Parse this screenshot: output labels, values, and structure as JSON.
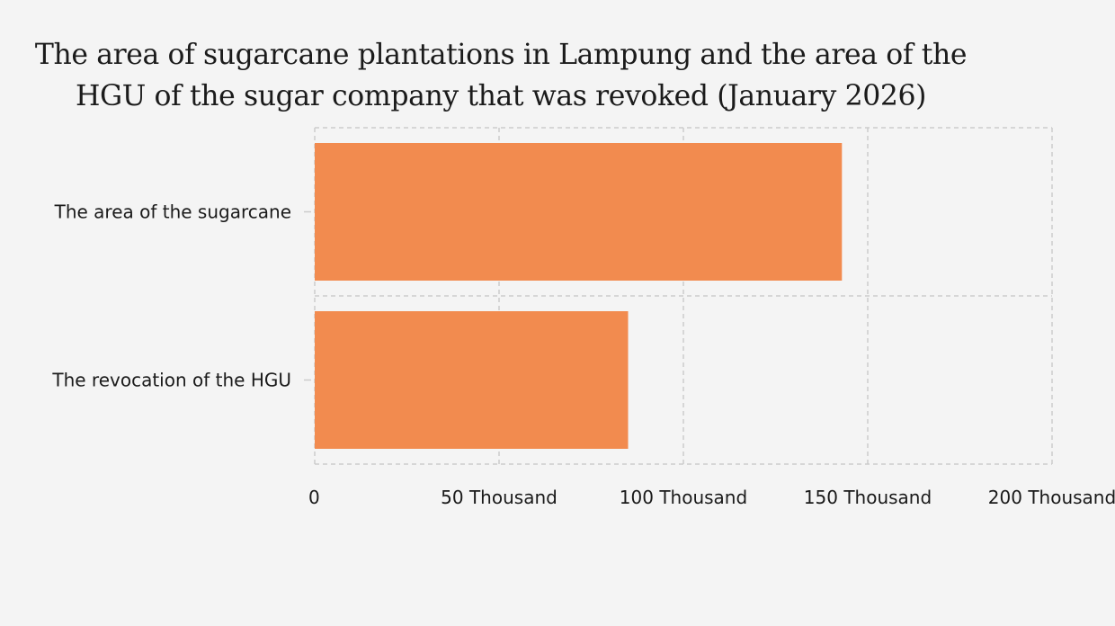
{
  "chart_data": {
    "type": "bar",
    "orientation": "horizontal",
    "title": "The area of sugarcane plantations in Lampung and the area of the HGU of the sugar company that was revoked (January 2026)",
    "categories": [
      "The area of the sugarcane",
      "The revocation of the HGU"
    ],
    "values": [
      143000,
      85000
    ],
    "xlim": [
      0,
      200000
    ],
    "xticks": [
      0,
      50000,
      100000,
      150000,
      200000
    ],
    "xtick_labels": [
      "0",
      "50 Thousand",
      "100 Thousand",
      "150 Thousand",
      "200 Thousand"
    ],
    "xlabel": "",
    "ylabel": "",
    "grid": true,
    "bar_color": "#f28b4f",
    "grid_color": "#cccccc"
  }
}
